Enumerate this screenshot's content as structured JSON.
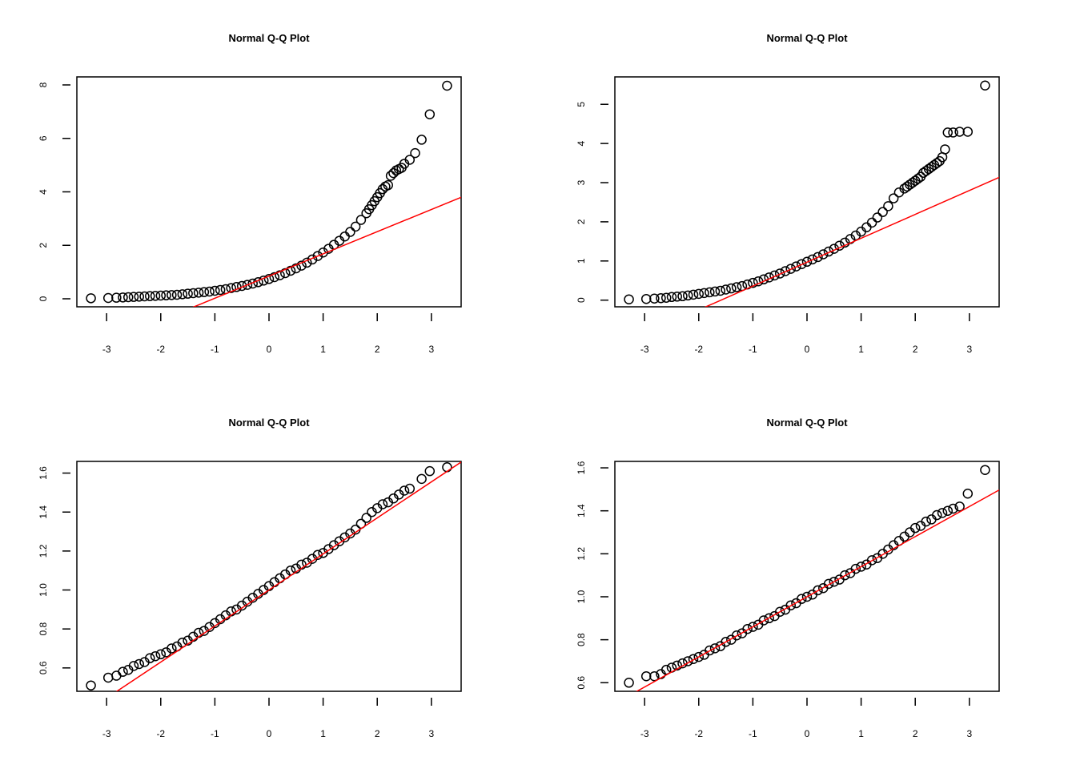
{
  "chart_data": [
    {
      "type": "scatter",
      "title": "Normal Q-Q Plot",
      "xlabel": "",
      "ylabel": "",
      "xlim": [
        -3.55,
        3.55
      ],
      "ylim": [
        -0.3,
        8.3
      ],
      "x_ticks": [
        -3,
        -2,
        -1,
        0,
        1,
        2,
        3
      ],
      "x_tick_labels": [
        "-3",
        "-2",
        "-1",
        "0",
        "1",
        "2",
        "3"
      ],
      "y_ticks": [
        0,
        2,
        4,
        6,
        8
      ],
      "y_tick_labels": [
        "0",
        "2",
        "4",
        "6",
        "8"
      ],
      "reference_line": {
        "intercept": 0.85,
        "slope": 0.83,
        "color": "#ff0000"
      },
      "points": {
        "x": [
          -3.29,
          -2.97,
          -2.82,
          -2.7,
          -2.6,
          -2.5,
          -2.4,
          -2.3,
          -2.2,
          -2.1,
          -2.0,
          -1.9,
          -1.8,
          -1.7,
          -1.6,
          -1.5,
          -1.4,
          -1.3,
          -1.2,
          -1.1,
          -1.0,
          -0.9,
          -0.8,
          -0.7,
          -0.6,
          -0.5,
          -0.4,
          -0.3,
          -0.2,
          -0.1,
          0.0,
          0.1,
          0.2,
          0.3,
          0.4,
          0.5,
          0.6,
          0.7,
          0.8,
          0.9,
          1.0,
          1.1,
          1.2,
          1.3,
          1.4,
          1.5,
          1.6,
          1.7,
          1.8,
          1.85,
          1.9,
          1.95,
          2.0,
          2.05,
          2.1,
          2.15,
          2.2,
          2.25,
          2.3,
          2.35,
          2.4,
          2.45,
          2.5,
          2.6,
          2.7,
          2.82,
          2.97,
          3.29
        ],
        "y": [
          0.02,
          0.03,
          0.04,
          0.05,
          0.06,
          0.07,
          0.08,
          0.09,
          0.1,
          0.11,
          0.12,
          0.13,
          0.14,
          0.15,
          0.17,
          0.19,
          0.21,
          0.23,
          0.25,
          0.27,
          0.3,
          0.33,
          0.36,
          0.4,
          0.44,
          0.48,
          0.52,
          0.57,
          0.62,
          0.68,
          0.74,
          0.81,
          0.88,
          0.96,
          1.05,
          1.14,
          1.24,
          1.35,
          1.47,
          1.6,
          1.73,
          1.87,
          2.02,
          2.17,
          2.33,
          2.5,
          2.7,
          2.95,
          3.2,
          3.35,
          3.5,
          3.65,
          3.8,
          3.95,
          4.1,
          4.2,
          4.25,
          4.6,
          4.7,
          4.8,
          4.85,
          4.9,
          5.05,
          5.2,
          5.45,
          5.95,
          6.9,
          7.97
        ]
      }
    },
    {
      "type": "scatter",
      "title": "Normal Q-Q Plot",
      "xlabel": "",
      "ylabel": "",
      "xlim": [
        -3.55,
        3.55
      ],
      "ylim": [
        -0.17,
        5.7
      ],
      "x_ticks": [
        -3,
        -2,
        -1,
        0,
        1,
        2,
        3
      ],
      "x_tick_labels": [
        "-3",
        "-2",
        "-1",
        "0",
        "1",
        "2",
        "3"
      ],
      "y_ticks": [
        0,
        1,
        2,
        3,
        4,
        5
      ],
      "y_tick_labels": [
        "0",
        "1",
        "2",
        "3",
        "4",
        "5"
      ],
      "reference_line": {
        "intercept": 0.97,
        "slope": 0.61,
        "color": "#ff0000"
      },
      "points": {
        "x": [
          -3.29,
          -2.97,
          -2.82,
          -2.7,
          -2.6,
          -2.5,
          -2.4,
          -2.3,
          -2.2,
          -2.1,
          -2.0,
          -1.9,
          -1.8,
          -1.7,
          -1.6,
          -1.5,
          -1.4,
          -1.3,
          -1.2,
          -1.1,
          -1.0,
          -0.9,
          -0.8,
          -0.7,
          -0.6,
          -0.5,
          -0.4,
          -0.3,
          -0.2,
          -0.1,
          0.0,
          0.1,
          0.2,
          0.3,
          0.4,
          0.5,
          0.6,
          0.7,
          0.8,
          0.9,
          1.0,
          1.1,
          1.2,
          1.3,
          1.4,
          1.5,
          1.6,
          1.7,
          1.8,
          1.85,
          1.9,
          1.95,
          2.0,
          2.05,
          2.1,
          2.15,
          2.2,
          2.25,
          2.3,
          2.35,
          2.4,
          2.45,
          2.5,
          2.55,
          2.6,
          2.7,
          2.82,
          2.97,
          3.29
        ],
        "y": [
          0.02,
          0.03,
          0.04,
          0.05,
          0.06,
          0.08,
          0.09,
          0.1,
          0.12,
          0.14,
          0.16,
          0.18,
          0.2,
          0.22,
          0.24,
          0.27,
          0.3,
          0.33,
          0.36,
          0.4,
          0.44,
          0.48,
          0.53,
          0.58,
          0.63,
          0.68,
          0.74,
          0.8,
          0.86,
          0.92,
          0.98,
          1.04,
          1.1,
          1.17,
          1.24,
          1.31,
          1.39,
          1.47,
          1.56,
          1.65,
          1.75,
          1.86,
          1.98,
          2.11,
          2.25,
          2.4,
          2.6,
          2.75,
          2.85,
          2.9,
          2.95,
          3.0,
          3.05,
          3.1,
          3.15,
          3.25,
          3.3,
          3.35,
          3.4,
          3.45,
          3.5,
          3.55,
          3.65,
          3.85,
          4.28,
          4.28,
          4.3,
          4.3,
          5.48
        ]
      }
    },
    {
      "type": "scatter",
      "title": "Normal Q-Q Plot",
      "xlabel": "",
      "ylabel": "",
      "xlim": [
        -3.55,
        3.55
      ],
      "ylim": [
        0.48,
        1.66
      ],
      "x_ticks": [
        -3,
        -2,
        -1,
        0,
        1,
        2,
        3
      ],
      "x_tick_labels": [
        "-3",
        "-2",
        "-1",
        "0",
        "1",
        "2",
        "3"
      ],
      "y_ticks": [
        0.6,
        0.8,
        1.0,
        1.2,
        1.4,
        1.6
      ],
      "y_tick_labels": [
        "0.6",
        "0.8",
        "1.0",
        "1.2",
        "1.4",
        "1.6"
      ],
      "reference_line": {
        "intercept": 1.0,
        "slope": 0.185,
        "color": "#ff0000"
      },
      "points": {
        "x": [
          -3.29,
          -2.97,
          -2.82,
          -2.7,
          -2.6,
          -2.5,
          -2.4,
          -2.3,
          -2.2,
          -2.1,
          -2.0,
          -1.9,
          -1.8,
          -1.7,
          -1.6,
          -1.5,
          -1.4,
          -1.3,
          -1.2,
          -1.1,
          -1.0,
          -0.9,
          -0.8,
          -0.7,
          -0.6,
          -0.5,
          -0.4,
          -0.3,
          -0.2,
          -0.1,
          0.0,
          0.1,
          0.2,
          0.3,
          0.4,
          0.5,
          0.6,
          0.7,
          0.8,
          0.9,
          1.0,
          1.1,
          1.2,
          1.3,
          1.4,
          1.5,
          1.6,
          1.7,
          1.8,
          1.9,
          2.0,
          2.1,
          2.2,
          2.3,
          2.4,
          2.5,
          2.6,
          2.82,
          2.97,
          3.29
        ],
        "y": [
          0.51,
          0.55,
          0.56,
          0.58,
          0.59,
          0.61,
          0.62,
          0.63,
          0.65,
          0.66,
          0.67,
          0.68,
          0.7,
          0.71,
          0.73,
          0.74,
          0.76,
          0.78,
          0.79,
          0.81,
          0.83,
          0.85,
          0.87,
          0.89,
          0.9,
          0.92,
          0.94,
          0.96,
          0.98,
          1.0,
          1.02,
          1.04,
          1.06,
          1.08,
          1.1,
          1.11,
          1.13,
          1.14,
          1.16,
          1.18,
          1.19,
          1.21,
          1.23,
          1.25,
          1.27,
          1.29,
          1.31,
          1.34,
          1.37,
          1.4,
          1.42,
          1.44,
          1.45,
          1.47,
          1.49,
          1.51,
          1.52,
          1.57,
          1.61,
          1.63
        ]
      }
    },
    {
      "type": "scatter",
      "title": "Normal Q-Q Plot",
      "xlabel": "",
      "ylabel": "",
      "xlim": [
        -3.55,
        3.55
      ],
      "ylim": [
        0.56,
        1.63
      ],
      "x_ticks": [
        -3,
        -2,
        -1,
        0,
        1,
        2,
        3
      ],
      "x_tick_labels": [
        "-3",
        "-2",
        "-1",
        "0",
        "1",
        "2",
        "3"
      ],
      "y_ticks": [
        0.6,
        0.8,
        1.0,
        1.2,
        1.4,
        1.6
      ],
      "y_tick_labels": [
        "0.6",
        "0.8",
        "1.0",
        "1.2",
        "1.4",
        "1.6"
      ],
      "reference_line": {
        "intercept": 1.0,
        "slope": 0.14,
        "color": "#ff0000"
      },
      "points": {
        "x": [
          -3.29,
          -2.97,
          -2.82,
          -2.7,
          -2.6,
          -2.5,
          -2.4,
          -2.3,
          -2.2,
          -2.1,
          -2.0,
          -1.9,
          -1.8,
          -1.7,
          -1.6,
          -1.5,
          -1.4,
          -1.3,
          -1.2,
          -1.1,
          -1.0,
          -0.9,
          -0.8,
          -0.7,
          -0.6,
          -0.5,
          -0.4,
          -0.3,
          -0.2,
          -0.1,
          0.0,
          0.1,
          0.2,
          0.3,
          0.4,
          0.5,
          0.6,
          0.7,
          0.8,
          0.9,
          1.0,
          1.1,
          1.2,
          1.3,
          1.4,
          1.5,
          1.6,
          1.7,
          1.8,
          1.9,
          2.0,
          2.1,
          2.2,
          2.3,
          2.4,
          2.5,
          2.6,
          2.7,
          2.82,
          2.97,
          3.29
        ],
        "y": [
          0.6,
          0.63,
          0.63,
          0.64,
          0.66,
          0.67,
          0.68,
          0.69,
          0.7,
          0.71,
          0.72,
          0.73,
          0.75,
          0.76,
          0.77,
          0.79,
          0.8,
          0.82,
          0.83,
          0.85,
          0.86,
          0.87,
          0.89,
          0.9,
          0.91,
          0.93,
          0.94,
          0.96,
          0.97,
          0.99,
          1.0,
          1.01,
          1.03,
          1.04,
          1.06,
          1.07,
          1.08,
          1.1,
          1.11,
          1.13,
          1.14,
          1.15,
          1.17,
          1.18,
          1.2,
          1.22,
          1.24,
          1.26,
          1.28,
          1.3,
          1.32,
          1.33,
          1.35,
          1.36,
          1.38,
          1.39,
          1.4,
          1.41,
          1.42,
          1.48,
          1.59
        ]
      }
    }
  ]
}
